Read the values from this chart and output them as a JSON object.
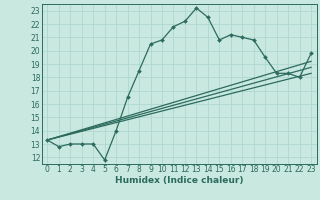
{
  "xlabel": "Humidex (Indice chaleur)",
  "ylabel": "",
  "bg_color": "#c8e8e0",
  "grid_color": "#b0d8d0",
  "line_color": "#2d6b5e",
  "xlim": [
    -0.5,
    23.5
  ],
  "ylim": [
    11.5,
    23.5
  ],
  "xticks": [
    0,
    1,
    2,
    3,
    4,
    5,
    6,
    7,
    8,
    9,
    10,
    11,
    12,
    13,
    14,
    15,
    16,
    17,
    18,
    19,
    20,
    21,
    22,
    23
  ],
  "yticks": [
    12,
    13,
    14,
    15,
    16,
    17,
    18,
    19,
    20,
    21,
    22,
    23
  ],
  "data_x": [
    0,
    1,
    2,
    3,
    4,
    5,
    6,
    7,
    8,
    9,
    10,
    11,
    12,
    13,
    14,
    15,
    16,
    17,
    18,
    19,
    20,
    21,
    22,
    23
  ],
  "data_y": [
    13.3,
    12.8,
    13.0,
    13.0,
    13.0,
    11.8,
    14.0,
    16.5,
    18.5,
    20.5,
    20.8,
    21.8,
    22.2,
    23.2,
    22.5,
    20.8,
    21.2,
    21.0,
    20.8,
    19.5,
    18.3,
    18.3,
    18.0,
    19.8
  ],
  "reg_lines": [
    [
      0,
      13.3,
      23,
      19.2
    ],
    [
      0,
      13.3,
      23,
      18.3
    ],
    [
      0,
      13.3,
      23,
      18.75
    ]
  ],
  "tick_fontsize": 5.5,
  "xlabel_fontsize": 6.5
}
